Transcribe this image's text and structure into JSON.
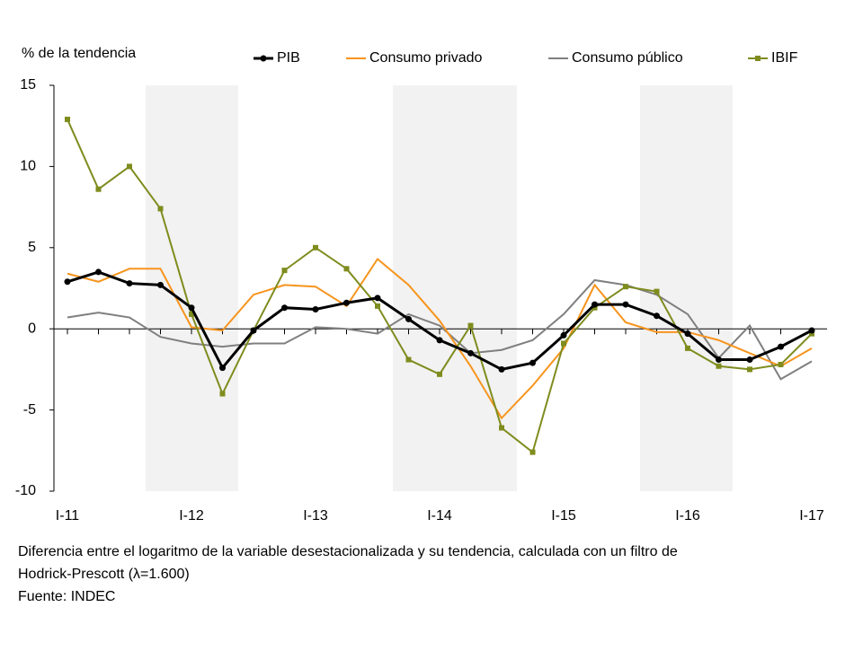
{
  "chart_data": {
    "type": "line",
    "y_label": "% de la tendencia",
    "categories": [
      "I-11",
      null,
      null,
      null,
      "I-12",
      null,
      null,
      null,
      "I-13",
      null,
      null,
      null,
      "I-14",
      null,
      null,
      null,
      "I-15",
      null,
      null,
      null,
      "I-16",
      null,
      null,
      null,
      "I-17"
    ],
    "series": [
      {
        "name": "PIB",
        "color": "#000000",
        "marker": "circle",
        "values": [
          2.9,
          3.5,
          2.8,
          2.7,
          1.3,
          -2.4,
          -0.1,
          1.3,
          1.2,
          1.6,
          1.9,
          0.6,
          -0.7,
          -1.5,
          -2.5,
          -2.1,
          -0.4,
          1.5,
          1.5,
          0.8,
          -0.3,
          -1.9,
          -1.9,
          -1.1,
          -0.1
        ]
      },
      {
        "name": "Consumo privado",
        "color": "#f7941d",
        "marker": "none",
        "values": [
          3.4,
          2.9,
          3.7,
          3.7,
          0.1,
          -0.1,
          2.1,
          2.7,
          2.6,
          1.4,
          4.3,
          2.7,
          0.5,
          -2.3,
          -5.5,
          -3.5,
          -1.2,
          2.7,
          0.4,
          -0.2,
          -0.2,
          -0.7,
          -1.5,
          -2.3,
          -1.2
        ]
      },
      {
        "name": "Consumo público",
        "color": "#7f7f7f",
        "marker": "none",
        "values": [
          0.7,
          1.0,
          0.7,
          -0.5,
          -0.9,
          -1.1,
          -0.9,
          -0.9,
          0.1,
          0.0,
          -0.3,
          0.9,
          0.2,
          -1.5,
          -1.3,
          -0.7,
          0.9,
          3.0,
          2.7,
          2.1,
          0.9,
          -1.8,
          0.2,
          -3.1,
          -2.0
        ]
      },
      {
        "name": "IBIF",
        "color": "#7f8c1e",
        "marker": "square",
        "values": [
          12.9,
          8.6,
          10.0,
          7.4,
          0.9,
          -4.0,
          -0.1,
          3.6,
          5.0,
          3.7,
          1.4,
          -1.9,
          -2.8,
          0.2,
          -6.1,
          -7.6,
          -0.9,
          1.3,
          2.6,
          2.3,
          -1.2,
          -2.3,
          -2.5,
          -2.2,
          -0.3
        ]
      }
    ],
    "ylim": [
      -10,
      15
    ],
    "yticks": [
      -10,
      -5,
      0,
      5,
      10,
      15
    ],
    "footnote": [
      "Diferencia entre el logaritmo de la variable desestacionalizada y su tendencia, calculada con un filtro de",
      "Hodrick-Prescott (λ=1.600)",
      "Fuente: INDEC"
    ]
  }
}
